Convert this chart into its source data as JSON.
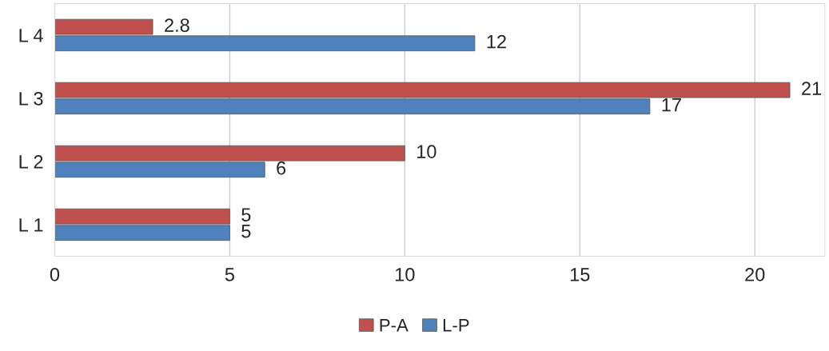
{
  "chart_data": {
    "type": "bar",
    "orientation": "horizontal",
    "categories": [
      "L 4",
      "L 3",
      "L 2",
      "L 1"
    ],
    "series": [
      {
        "name": "P-A",
        "color": "#c0504d",
        "values": [
          2.8,
          21,
          10,
          5
        ]
      },
      {
        "name": "L-P",
        "color": "#4f81bd",
        "values": [
          12,
          17,
          6,
          5
        ]
      }
    ],
    "xlim": [
      0,
      22
    ],
    "xticks": [
      0,
      5,
      10,
      15,
      20
    ],
    "grid": "x",
    "data_labels": true,
    "legend": "bottom"
  }
}
